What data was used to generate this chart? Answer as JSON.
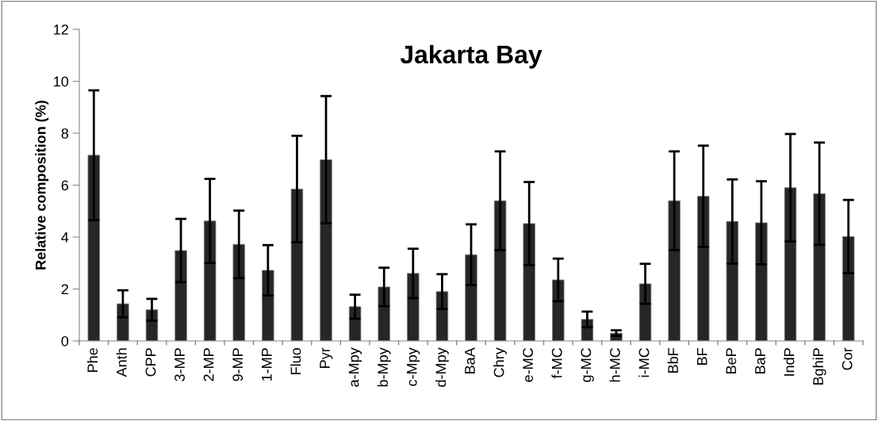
{
  "chart_data": {
    "type": "bar",
    "title": "Jakarta Bay",
    "ylabel": "Relative composition (%)",
    "categories": [
      "Phe",
      "Anth",
      "CPP",
      "3-MP",
      "2-MP",
      "9-MP",
      "1-MP",
      "Fluo",
      "Pyr",
      "a-Mpy",
      "b-Mpy",
      "c-Mpy",
      "d-Mpy",
      "BaA",
      "Chry",
      "e-MC",
      "f-MC",
      "g-MC",
      "h-MC",
      "i-MC",
      "BbF",
      "BF",
      "BeP",
      "BaP",
      "IndP",
      "BghiP",
      "Cor"
    ],
    "values": [
      7.15,
      1.43,
      1.2,
      3.48,
      4.62,
      3.72,
      2.72,
      5.85,
      6.98,
      1.32,
      2.08,
      2.6,
      1.9,
      3.32,
      5.4,
      4.52,
      2.35,
      0.83,
      0.3,
      2.2,
      5.4,
      5.57,
      4.6,
      4.55,
      5.9,
      5.67,
      4.02
    ],
    "errors": [
      2.5,
      0.52,
      0.42,
      1.22,
      1.62,
      1.3,
      0.97,
      2.05,
      2.45,
      0.46,
      0.74,
      0.95,
      0.67,
      1.17,
      1.9,
      1.6,
      0.82,
      0.3,
      0.11,
      0.77,
      1.9,
      1.95,
      1.62,
      1.6,
      2.07,
      1.97,
      1.41
    ],
    "color": "#262626",
    "ylim": [
      0,
      12
    ],
    "yticks": [
      0,
      2,
      4,
      6,
      8,
      10,
      12
    ],
    "grid": false
  }
}
